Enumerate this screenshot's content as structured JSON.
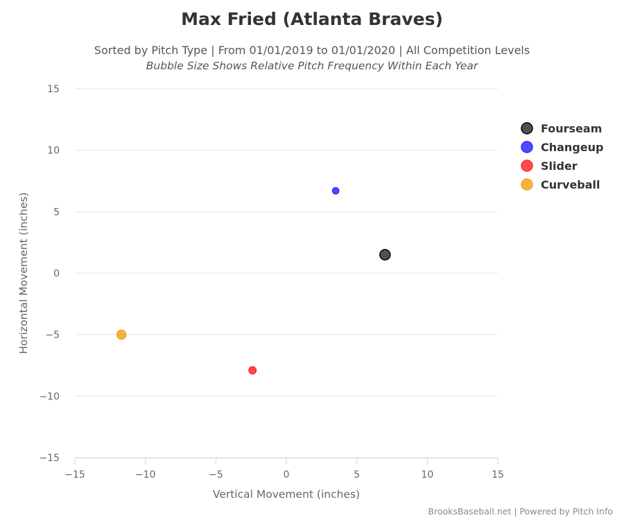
{
  "chart_data": {
    "type": "scatter",
    "title": "Max Fried (Atlanta Braves)",
    "subtitle": "Sorted by Pitch Type | From 01/01/2019 to 01/01/2020 | All Competition Levels",
    "subtitle2": "Bubble Size Shows Relative Pitch Frequency Within Each Year",
    "xlabel": "Vertical Movement (inches)",
    "ylabel": "Horizontal Movement (inches)",
    "xlim": [
      -15,
      15
    ],
    "ylim": [
      -15,
      15
    ],
    "xticks": [
      -15,
      -10,
      -5,
      0,
      5,
      10,
      15
    ],
    "yticks": [
      -15,
      -10,
      -5,
      0,
      5,
      10,
      15
    ],
    "grid": "horizontal",
    "legend_position": "right",
    "series": [
      {
        "name": "Fourseam",
        "color": "#333333",
        "points": [
          {
            "x": 7.0,
            "y": 1.5,
            "size": 1.0
          }
        ]
      },
      {
        "name": "Changeup",
        "color": "#2b2bff",
        "points": [
          {
            "x": 3.5,
            "y": 6.7,
            "size": 0.35
          }
        ]
      },
      {
        "name": "Slider",
        "color": "#ff2b2b",
        "points": [
          {
            "x": -2.4,
            "y": -7.9,
            "size": 0.5
          }
        ]
      },
      {
        "name": "Curveball",
        "color": "#f5a623",
        "points": [
          {
            "x": -11.7,
            "y": -5.0,
            "size": 0.8
          }
        ]
      }
    ],
    "credits": "BrooksBaseball.net | Powered by Pitch Info"
  }
}
